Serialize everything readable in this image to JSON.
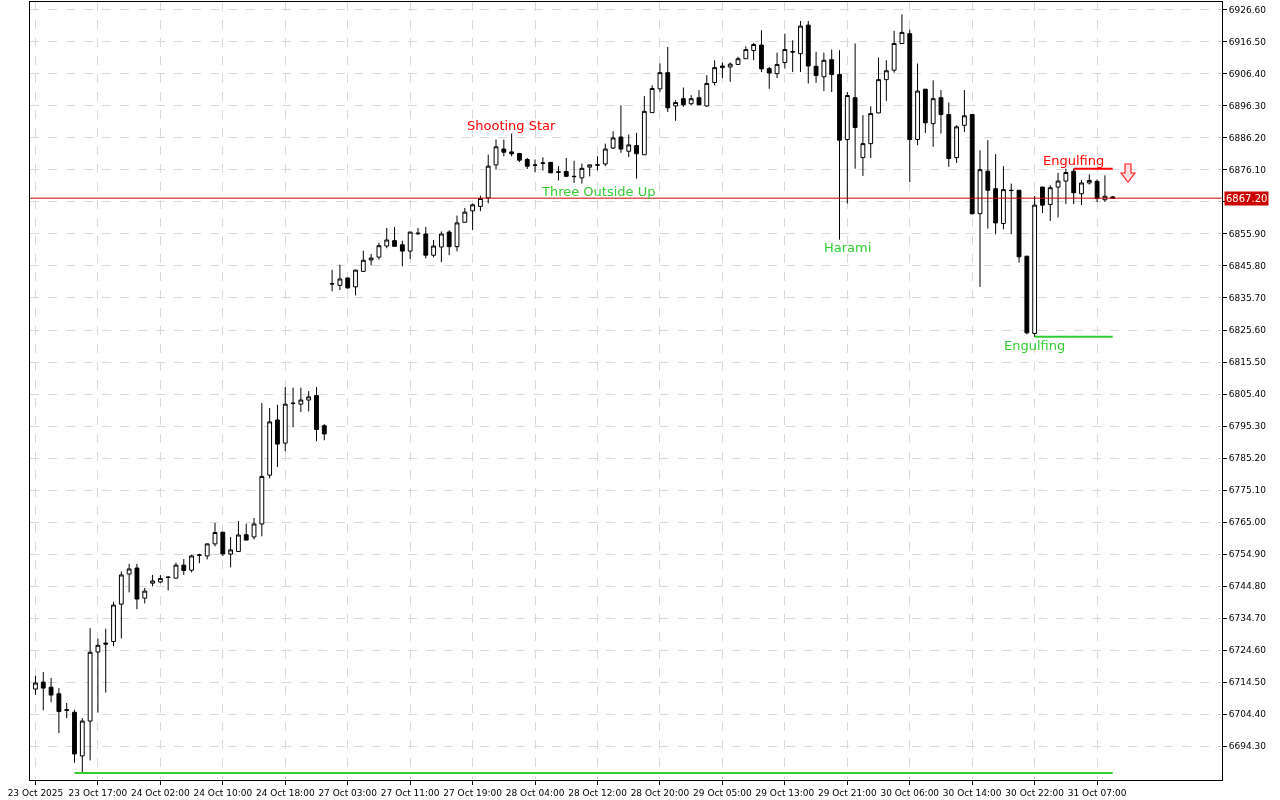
{
  "chart_data": {
    "type": "candlestick",
    "categories": [
      "23 Oct 2025",
      null,
      null,
      null,
      null,
      null,
      null,
      null,
      "23 Oct 17:00",
      null,
      null,
      null,
      null,
      null,
      null,
      null,
      "24 Oct 02:00",
      null,
      null,
      null,
      null,
      null,
      null,
      null,
      "24 Oct 10:00",
      null,
      null,
      null,
      null,
      null,
      null,
      null,
      "24 Oct 18:00",
      null,
      null,
      null,
      null,
      null,
      null,
      null,
      "27 Oct 03:00",
      null,
      null,
      null,
      null,
      null,
      null,
      null,
      "27 Oct 11:00",
      null,
      null,
      null,
      null,
      null,
      null,
      null,
      "27 Oct 19:00",
      null,
      null,
      null,
      null,
      null,
      null,
      null,
      "28 Oct 04:00",
      null,
      null,
      null,
      null,
      null,
      null,
      null,
      "28 Oct 12:00",
      null,
      null,
      null,
      null,
      null,
      null,
      null,
      "28 Oct 20:00",
      null,
      null,
      null,
      null,
      null,
      null,
      null,
      "29 Oct 05:00",
      null,
      null,
      null,
      null,
      null,
      null,
      null,
      "29 Oct 13:00",
      null,
      null,
      null,
      null,
      null,
      null,
      null,
      "29 Oct 21:00",
      null,
      null,
      null,
      null,
      null,
      null,
      null,
      "30 Oct 06:00",
      null,
      null,
      null,
      null,
      null,
      null,
      null,
      "30 Oct 14:00",
      null,
      null,
      null,
      null,
      null,
      null,
      null,
      "30 Oct 22:00",
      null,
      null,
      null,
      null,
      null,
      null,
      null,
      "31 Oct 07:00",
      null,
      null
    ],
    "ohlc": [
      [
        6712.3,
        6716.5,
        6710.5,
        6714.2
      ],
      [
        6714.5,
        6717.7,
        6705.6,
        6712.6
      ],
      [
        6712.9,
        6715.8,
        6708.1,
        6710.4
      ],
      [
        6710.8,
        6712.6,
        6698.4,
        6705.2
      ],
      [
        6705.8,
        6707.9,
        6703.1,
        6705.6
      ],
      [
        6705.0,
        6705.8,
        6689.1,
        6691.8
      ],
      [
        6691.2,
        6703.1,
        6685.8,
        6702.2
      ],
      [
        6702.2,
        6731.5,
        6689.8,
        6723.9
      ],
      [
        6724.0,
        6728.2,
        6704.9,
        6726.1
      ],
      [
        6726.8,
        6731.3,
        6711.2,
        6726.5
      ],
      [
        6727.3,
        6739.8,
        6725.8,
        6738.8
      ],
      [
        6739.1,
        6749.4,
        6728.3,
        6748.3
      ],
      [
        6748.6,
        6751.8,
        6742.8,
        6750.2
      ],
      [
        6750.5,
        6751.8,
        6737.5,
        6740.7
      ],
      [
        6741.0,
        6744.2,
        6739.3,
        6743.2
      ],
      [
        6745.7,
        6748.3,
        6744.7,
        6746.4
      ],
      [
        6746.1,
        6748.3,
        6745.7,
        6747.2
      ],
      [
        6747.5,
        6748.0,
        6743.4,
        6747.6
      ],
      [
        6747.3,
        6752.2,
        6747.2,
        6751.4
      ],
      [
        6751.4,
        6753.3,
        6748.3,
        6749.7
      ],
      [
        6749.8,
        6754.7,
        6749.1,
        6754.3
      ],
      [
        6754.5,
        6755.0,
        6752.0,
        6754.6
      ],
      [
        6754.3,
        6758.2,
        6753.2,
        6758.1
      ],
      [
        6758.1,
        6764.7,
        6757.3,
        6761.7
      ],
      [
        6761.8,
        6761.9,
        6754.3,
        6754.9
      ],
      [
        6754.9,
        6760.3,
        6750.7,
        6756.2
      ],
      [
        6755.7,
        6765.3,
        6755.7,
        6760.9
      ],
      [
        6761.0,
        6764.5,
        6759.3,
        6759.3
      ],
      [
        6760.3,
        6766.3,
        6759.5,
        6764.4
      ],
      [
        6764.4,
        6802.6,
        6760.5,
        6779.4
      ],
      [
        6779.8,
        6801.0,
        6778.8,
        6796.6
      ],
      [
        6797.2,
        6802.0,
        6782.4,
        6789.6
      ],
      [
        6789.9,
        6807.6,
        6787.3,
        6802.2
      ],
      [
        6802.4,
        6807.4,
        6794.9,
        6802.5
      ],
      [
        6802.2,
        6807.4,
        6799.7,
        6803.5
      ],
      [
        6803.5,
        6806.3,
        6799.9,
        6804.5
      ],
      [
        6804.9,
        6807.6,
        6790.5,
        6794.2
      ],
      [
        6795.4,
        6795.9,
        6790.8,
        6792.8
      ],
      [
        6840.1,
        6844.6,
        6837.8,
        6840.2
      ],
      [
        6839.7,
        6846.2,
        6838.2,
        6841.7
      ],
      [
        6842.0,
        6842.2,
        6838.6,
        6838.9
      ],
      [
        6839.2,
        6844.6,
        6836.5,
        6844.5
      ],
      [
        6844.1,
        6850.6,
        6843.9,
        6847.6
      ],
      [
        6847.7,
        6849.6,
        6846.0,
        6848.3
      ],
      [
        6848.6,
        6853.1,
        6847.8,
        6852.2
      ],
      [
        6852.1,
        6857.8,
        6851.4,
        6854.0
      ],
      [
        6853.8,
        6858.1,
        6852.0,
        6852.0
      ],
      [
        6852.5,
        6853.8,
        6845.7,
        6850.5
      ],
      [
        6850.5,
        6856.6,
        6848.0,
        6856.5
      ],
      [
        6856.2,
        6857.8,
        6855.6,
        6856.0
      ],
      [
        6855.9,
        6858.1,
        6848.2,
        6849.2
      ],
      [
        6849.2,
        6854.0,
        6848.5,
        6852.1
      ],
      [
        6851.8,
        6856.7,
        6847.0,
        6855.9
      ],
      [
        6856.5,
        6857.1,
        6849.2,
        6851.9
      ],
      [
        6851.9,
        6861.7,
        6850.4,
        6859.4
      ],
      [
        6859.6,
        6864.1,
        6859.5,
        6862.8
      ],
      [
        6863.2,
        6865.5,
        6857.1,
        6865.1
      ],
      [
        6864.6,
        6868.0,
        6863.1,
        6867.1
      ],
      [
        6867.3,
        6880.9,
        6865.6,
        6877.3
      ],
      [
        6877.7,
        6885.7,
        6876.2,
        6883.4
      ],
      [
        6882.7,
        6885.7,
        6880.4,
        6881.7
      ],
      [
        6881.8,
        6887.6,
        6880.4,
        6881.2
      ],
      [
        6881.3,
        6881.5,
        6878.6,
        6879.2
      ],
      [
        6879.4,
        6879.9,
        6876.4,
        6877.3
      ],
      [
        6877.7,
        6879.4,
        6875.4,
        6877.6
      ],
      [
        6878.2,
        6880.1,
        6875.9,
        6878.3
      ],
      [
        6878.5,
        6878.6,
        6875.1,
        6875.2
      ],
      [
        6875.5,
        6877.3,
        6872.8,
        6875.4
      ],
      [
        6875.6,
        6879.9,
        6873.9,
        6874.1
      ],
      [
        6874.1,
        6879.0,
        6872.0,
        6874.0
      ],
      [
        6873.6,
        6878.1,
        6871.8,
        6876.6
      ],
      [
        6877.0,
        6877.8,
        6874.1,
        6877.7
      ],
      [
        6877.6,
        6880.4,
        6876.0,
        6877.7
      ],
      [
        6878.0,
        6884.4,
        6877.3,
        6882.7
      ],
      [
        6883.0,
        6888.3,
        6882.7,
        6886.2
      ],
      [
        6886.5,
        6896.5,
        6881.5,
        6882.7
      ],
      [
        6882.0,
        6887.3,
        6880.2,
        6884.0
      ],
      [
        6883.8,
        6887.8,
        6873.4,
        6881.2
      ],
      [
        6880.9,
        6899.4,
        6880.9,
        6894.6
      ],
      [
        6894.2,
        6902.8,
        6894.2,
        6901.8
      ],
      [
        6901.7,
        6909.7,
        6900.7,
        6906.8
      ],
      [
        6906.8,
        6914.9,
        6894.4,
        6895.7
      ],
      [
        6896.3,
        6898.1,
        6891.6,
        6897.4
      ],
      [
        6898.6,
        6902.1,
        6896.0,
        6896.7
      ],
      [
        6897.0,
        6899.7,
        6896.5,
        6898.6
      ],
      [
        6898.9,
        6901.3,
        6896.5,
        6896.7
      ],
      [
        6896.3,
        6906.0,
        6896.0,
        6903.4
      ],
      [
        6903.7,
        6910.7,
        6902.8,
        6908.4
      ],
      [
        6908.4,
        6910.0,
        6905.1,
        6908.9
      ],
      [
        6908.6,
        6910.0,
        6903.9,
        6909.5
      ],
      [
        6909.4,
        6911.8,
        6909.3,
        6911.2
      ],
      [
        6911.2,
        6915.1,
        6911.2,
        6914.1
      ],
      [
        6913.8,
        6916.2,
        6910.7,
        6915.7
      ],
      [
        6915.5,
        6920.2,
        6907.0,
        6908.0
      ],
      [
        6908.1,
        6908.6,
        6901.7,
        6906.7
      ],
      [
        6906.5,
        6913.1,
        6905.1,
        6909.4
      ],
      [
        6910.0,
        6919.1,
        6908.1,
        6914.1
      ],
      [
        6913.3,
        6917.0,
        6907.0,
        6913.4
      ],
      [
        6912.8,
        6923.1,
        6907.0,
        6921.5
      ],
      [
        6921.8,
        6923.1,
        6903.4,
        6908.9
      ],
      [
        6908.8,
        6913.4,
        6903.6,
        6905.9
      ],
      [
        6905.5,
        6913.1,
        6901.0,
        6910.7
      ],
      [
        6910.9,
        6914.1,
        6900.7,
        6906.2
      ],
      [
        6906.2,
        6913.9,
        6854.1,
        6885.5
      ],
      [
        6885.7,
        6900.7,
        6865.5,
        6899.6
      ],
      [
        6898.9,
        6916.0,
        6876.5,
        6889.5
      ],
      [
        6880.0,
        6893.4,
        6874.2,
        6884.4
      ],
      [
        6884.4,
        6896.2,
        6879.9,
        6893.9
      ],
      [
        6894.1,
        6911.6,
        6894.0,
        6904.6
      ],
      [
        6904.6,
        6910.7,
        6897.9,
        6907.4
      ],
      [
        6907.6,
        6920.0,
        6906.8,
        6916.0
      ],
      [
        6916.0,
        6925.2,
        6915.9,
        6919.5
      ],
      [
        6919.1,
        6920.4,
        6872.3,
        6885.7
      ],
      [
        6885.7,
        6909.7,
        6883.9,
        6901.0
      ],
      [
        6901.6,
        6901.6,
        6887.8,
        6891.0
      ],
      [
        6890.7,
        6904.4,
        6883.4,
        6898.6
      ],
      [
        6898.9,
        6901.3,
        6887.6,
        6893.6
      ],
      [
        6893.6,
        6897.4,
        6877.1,
        6879.7
      ],
      [
        6880.0,
        6890.2,
        6878.3,
        6889.7
      ],
      [
        6890.2,
        6901.3,
        6888.1,
        6893.2
      ],
      [
        6893.6,
        6893.6,
        6862.0,
        6862.3
      ],
      [
        6862.3,
        6882.3,
        6839.2,
        6876.2
      ],
      [
        6875.7,
        6885.5,
        6857.6,
        6869.7
      ],
      [
        6870.2,
        6881.1,
        6855.8,
        6859.4
      ],
      [
        6859.2,
        6877.3,
        6857.4,
        6869.9
      ],
      [
        6869.7,
        6871.8,
        6855.8,
        6869.6
      ],
      [
        6869.7,
        6869.7,
        6846.9,
        6848.7
      ],
      [
        6848.9,
        6848.9,
        6824.2,
        6824.7
      ],
      [
        6824.5,
        6867.9,
        6823.4,
        6865.0
      ],
      [
        6870.7,
        6870.8,
        6862.5,
        6865.0
      ],
      [
        6865.2,
        6871.3,
        6860.0,
        6870.5
      ],
      [
        6870.7,
        6875.2,
        6861.1,
        6872.6
      ],
      [
        6872.6,
        6876.5,
        6865.3,
        6875.3
      ],
      [
        6875.7,
        6876.5,
        6865.3,
        6868.9
      ],
      [
        6868.6,
        6872.9,
        6865.0,
        6872.0
      ],
      [
        6872.0,
        6874.7,
        6871.5,
        6872.8
      ],
      [
        6872.5,
        6873.1,
        6866.0,
        6867.1
      ],
      [
        6866.7,
        6874.4,
        6866.0,
        6867.8
      ],
      [
        6867.6,
        6867.9,
        6867.1,
        6867.2
      ]
    ],
    "series": [
      {
        "type": "line",
        "color": "#32cd32",
        "values": [
          null,
          null,
          null,
          null,
          null,
          6685.8,
          6685.8,
          6685.8,
          6685.8,
          6685.8,
          6685.8,
          6685.8,
          6685.8,
          6685.8,
          6685.8,
          6685.8,
          6685.8,
          6685.8,
          6685.8,
          6685.8,
          6685.8,
          6685.8,
          6685.8,
          6685.8,
          6685.8,
          6685.8,
          6685.8,
          6685.8,
          6685.8,
          6685.8,
          6685.8,
          6685.8,
          6685.8,
          6685.8,
          6685.8,
          6685.8,
          6685.8,
          6685.8,
          6685.8,
          6685.8,
          6685.8,
          6685.8,
          6685.8,
          6685.8,
          6685.8,
          6685.8,
          6685.8,
          6685.8,
          6685.8,
          6685.8,
          6685.8,
          6685.8,
          6685.8,
          6685.8,
          6685.8,
          6685.8,
          6685.8,
          6685.8,
          6685.8,
          6685.8,
          6685.8,
          6685.8,
          6685.8,
          6685.8,
          6685.8,
          6685.8,
          6685.8,
          6685.8,
          6685.8,
          6685.8,
          6685.8,
          6685.8,
          6685.8,
          6685.8,
          6685.8,
          6685.8,
          6685.8,
          6685.8,
          6685.8,
          6685.8,
          6685.8,
          6685.8,
          6685.8,
          6685.8,
          6685.8,
          6685.8,
          6685.8,
          6685.8,
          6685.8,
          6685.8,
          6685.8,
          6685.8,
          6685.8,
          6685.8,
          6685.8,
          6685.8,
          6685.8,
          6685.8,
          6685.8,
          6685.8,
          6685.8,
          6685.8,
          6685.8,
          6685.8,
          6685.8,
          6685.8,
          6685.8,
          6685.8,
          6685.8,
          6685.8,
          6685.8,
          6685.8,
          6685.8,
          6685.8,
          6685.8,
          6685.8,
          6685.8,
          6685.8,
          6685.8,
          6685.8,
          6685.8,
          6685.8,
          6685.8,
          6685.8,
          6685.8,
          6685.8,
          6685.8,
          6685.8,
          6685.8,
          6685.8,
          6685.8,
          6685.8,
          6685.8,
          6685.8,
          6685.8,
          6685.8,
          6685.8,
          6685.8,
          6685.8
        ]
      },
      {
        "type": "line",
        "color": "#32cd32",
        "values": [
          null,
          null,
          null,
          null,
          null,
          null,
          null,
          null,
          null,
          null,
          null,
          null,
          null,
          null,
          null,
          null,
          null,
          null,
          null,
          null,
          null,
          null,
          null,
          null,
          null,
          null,
          null,
          null,
          null,
          null,
          null,
          null,
          null,
          null,
          null,
          null,
          null,
          null,
          null,
          null,
          null,
          null,
          null,
          null,
          null,
          null,
          null,
          null,
          null,
          null,
          null,
          null,
          null,
          null,
          null,
          null,
          null,
          null,
          null,
          null,
          null,
          null,
          null,
          null,
          null,
          null,
          null,
          null,
          null,
          null,
          null,
          null,
          null,
          null,
          null,
          null,
          null,
          null,
          null,
          null,
          null,
          null,
          null,
          null,
          null,
          null,
          null,
          null,
          null,
          null,
          null,
          null,
          null,
          null,
          null,
          null,
          null,
          null,
          null,
          null,
          null,
          null,
          null,
          null,
          null,
          null,
          null,
          null,
          null,
          null,
          null,
          null,
          null,
          null,
          null,
          null,
          null,
          null,
          null,
          null,
          null,
          null,
          null,
          null,
          null,
          null,
          null,
          null,
          6823.5,
          6823.5,
          6823.5,
          6823.5,
          6823.5,
          6823.5,
          6823.5,
          6823.5,
          6823.5,
          6823.5,
          6823.5
        ]
      },
      {
        "type": "line",
        "color": "#ff0000",
        "values": [
          null,
          null,
          null,
          null,
          null,
          null,
          null,
          null,
          null,
          null,
          null,
          null,
          null,
          null,
          null,
          null,
          null,
          null,
          null,
          null,
          null,
          null,
          null,
          null,
          null,
          null,
          null,
          null,
          null,
          null,
          null,
          null,
          null,
          null,
          null,
          null,
          null,
          null,
          null,
          null,
          null,
          null,
          null,
          null,
          null,
          null,
          null,
          null,
          null,
          null,
          null,
          null,
          null,
          null,
          null,
          null,
          null,
          null,
          null,
          null,
          null,
          null,
          null,
          null,
          null,
          null,
          null,
          null,
          null,
          null,
          null,
          null,
          null,
          null,
          null,
          null,
          null,
          null,
          null,
          null,
          null,
          null,
          null,
          null,
          null,
          null,
          null,
          null,
          null,
          null,
          null,
          null,
          null,
          null,
          null,
          null,
          null,
          null,
          null,
          null,
          null,
          null,
          null,
          null,
          null,
          null,
          null,
          null,
          null,
          null,
          null,
          null,
          null,
          null,
          null,
          null,
          null,
          null,
          null,
          null,
          null,
          null,
          null,
          null,
          null,
          null,
          null,
          null,
          null,
          null,
          null,
          null,
          null,
          6876.5,
          6876.5,
          6876.5,
          6876.5,
          6876.5,
          6876.5
        ]
      }
    ],
    "ylim": [
      6683.6,
      6929.1
    ],
    "yticks": [
      {
        "value": 6694.3,
        "label": "6694.30"
      },
      {
        "value": 6704.4,
        "label": "6704.40"
      },
      {
        "value": 6714.5,
        "label": "6714.50"
      },
      {
        "value": 6724.6,
        "label": "6724.60"
      },
      {
        "value": 6734.7,
        "label": "6734.70"
      },
      {
        "value": 6744.8,
        "label": "6744.80"
      },
      {
        "value": 6754.9,
        "label": "6754.90"
      },
      {
        "value": 6765.0,
        "label": "6765.00"
      },
      {
        "value": 6775.1,
        "label": "6775.10"
      },
      {
        "value": 6785.2,
        "label": "6785.20"
      },
      {
        "value": 6795.3,
        "label": "6795.30"
      },
      {
        "value": 6805.4,
        "label": "6805.40"
      },
      {
        "value": 6815.5,
        "label": "6815.50"
      },
      {
        "value": 6825.6,
        "label": "6825.60"
      },
      {
        "value": 6835.7,
        "label": "6835.70"
      },
      {
        "value": 6845.8,
        "label": "6845.80"
      },
      {
        "value": 6855.9,
        "label": "6855.90"
      },
      {
        "value": 6866.0,
        "label": null
      },
      {
        "value": 6876.1,
        "label": "6876.10"
      },
      {
        "value": 6886.2,
        "label": "6886.20"
      },
      {
        "value": 6896.3,
        "label": "6896.30"
      },
      {
        "value": 6906.4,
        "label": "6906.40"
      },
      {
        "value": 6916.5,
        "label": "6916.50"
      },
      {
        "value": 6926.6,
        "label": "6926.60"
      }
    ],
    "ref_lines": [
      {
        "axis": "y",
        "value": 6867.2,
        "label": "6867.20",
        "color": "#cc0000"
      }
    ],
    "annotations": [
      "Shooting Star",
      "Three Outside Up",
      "Harami",
      "Engulfing",
      "Engulfing"
    ],
    "grid": true
  }
}
